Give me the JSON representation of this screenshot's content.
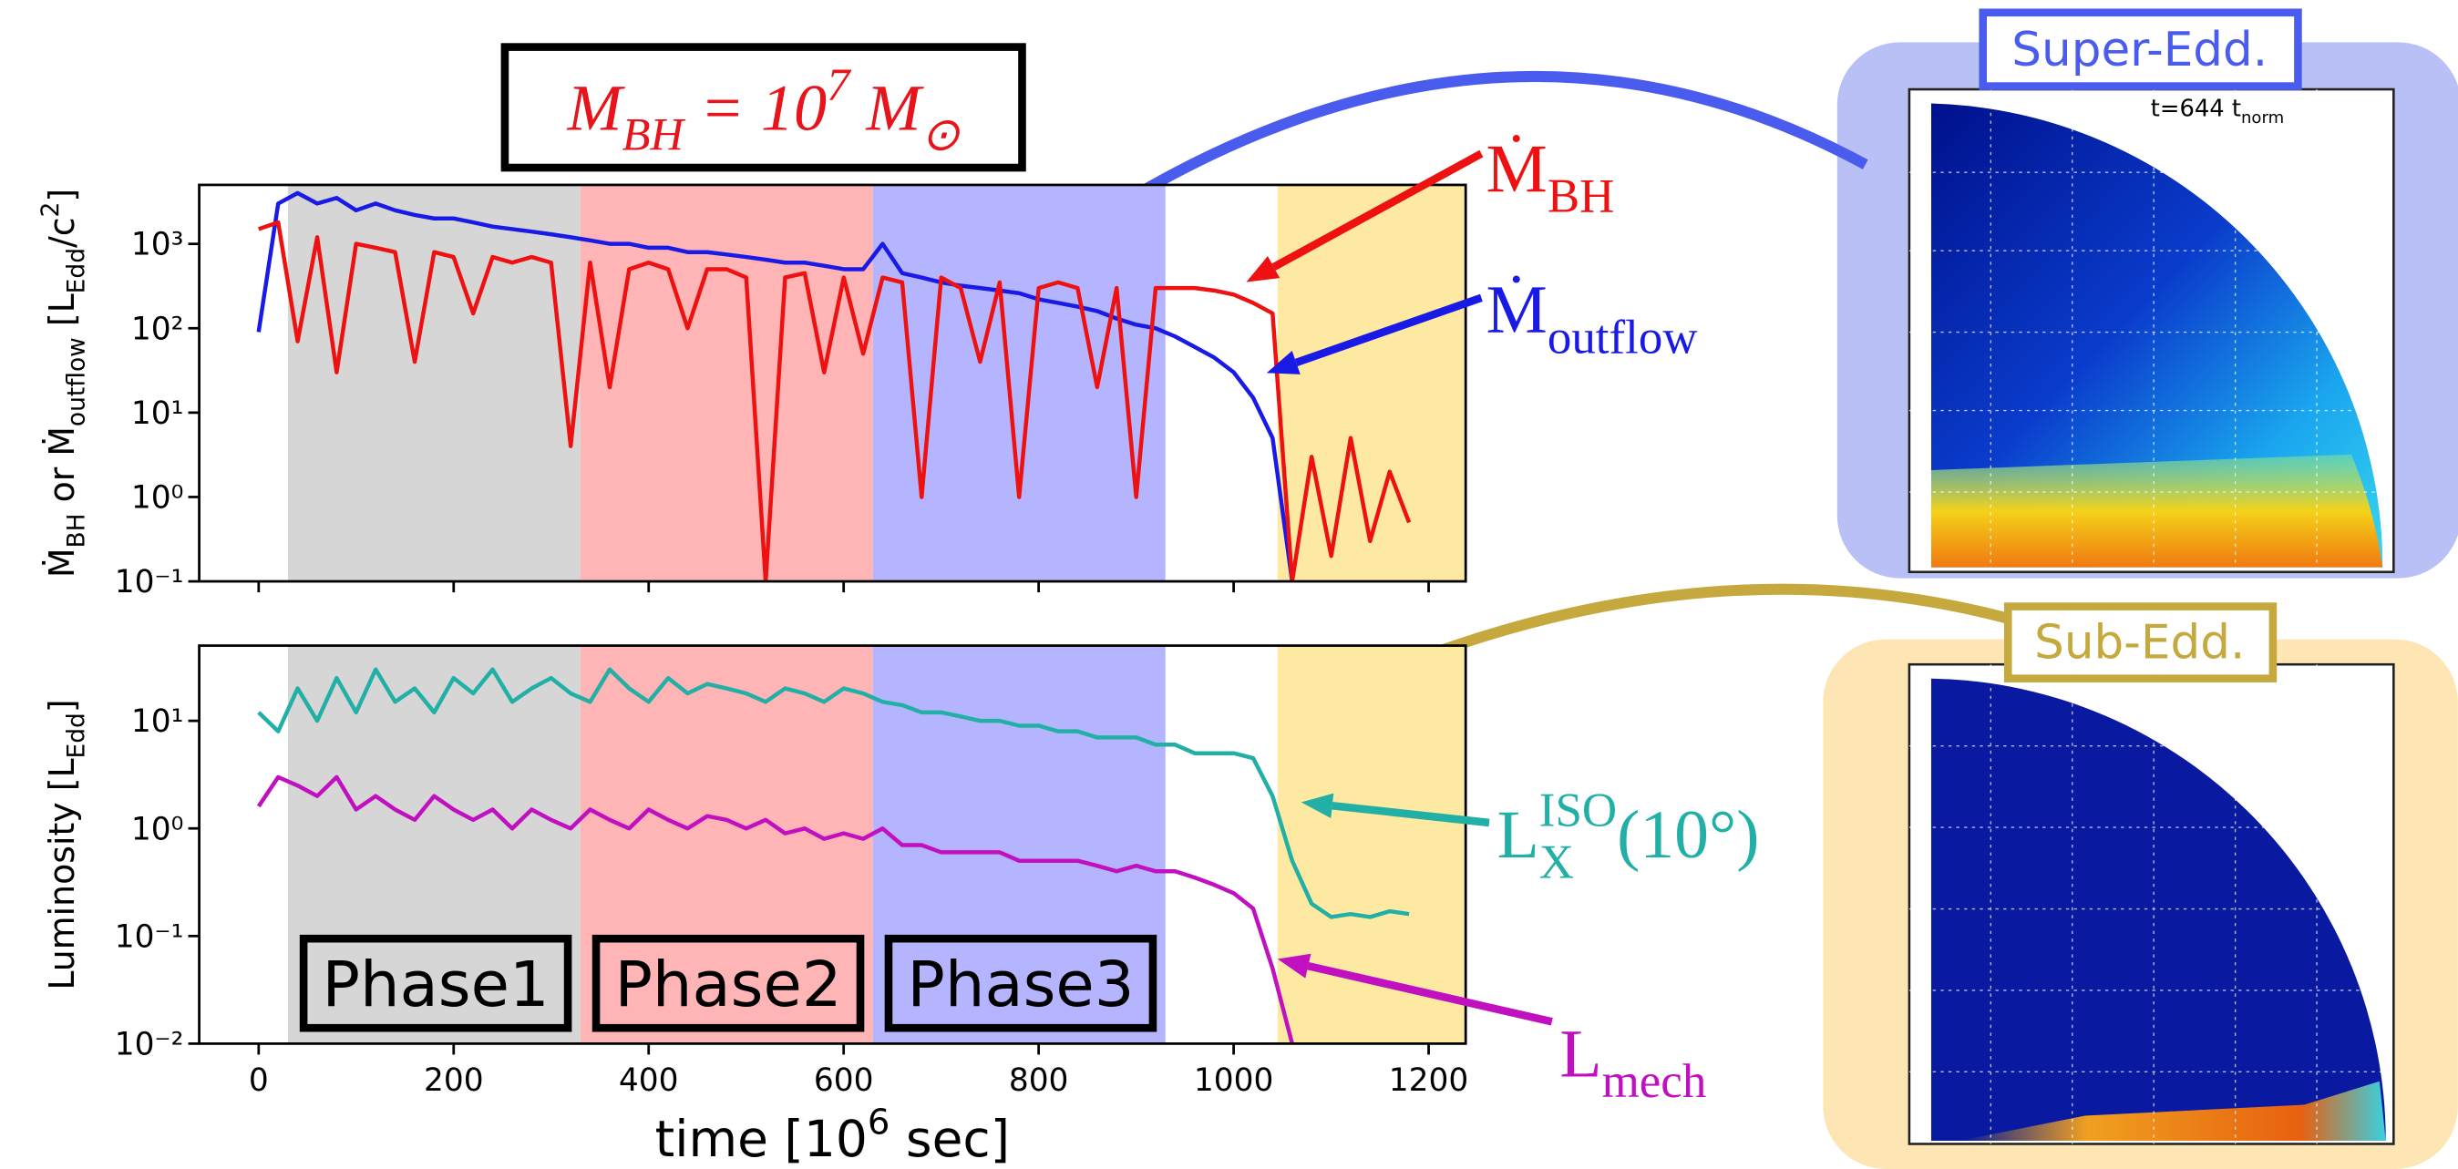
{
  "chart_data": [
    {
      "type": "line",
      "title": [
        {
          "text": "M"
        },
        {
          "text": "BH",
          "sub": true
        },
        {
          "text": " = 10"
        },
        {
          "text": "7",
          "sup": true
        },
        {
          "text": " M"
        },
        {
          "text": "⊙",
          "sub": true
        }
      ],
      "title_color": "#e8141c",
      "ylabel": [
        {
          "text": "Ṁ"
        },
        {
          "text": "BH",
          "sub": true
        },
        {
          "text": " or Ṁ"
        },
        {
          "text": "outflow",
          "sub": true
        },
        {
          "text": " [L"
        },
        {
          "text": "Edd",
          "sub": true
        },
        {
          "text": "/c"
        },
        {
          "text": "2",
          "sup": true
        },
        {
          "text": "]"
        }
      ],
      "x": [
        0,
        20,
        40,
        60,
        80,
        100,
        120,
        140,
        160,
        180,
        200,
        220,
        240,
        260,
        280,
        300,
        320,
        340,
        360,
        380,
        400,
        420,
        440,
        460,
        480,
        500,
        520,
        540,
        560,
        580,
        600,
        620,
        640,
        660,
        680,
        700,
        720,
        740,
        760,
        780,
        800,
        820,
        840,
        860,
        880,
        900,
        920,
        940,
        960,
        980,
        1000,
        1020,
        1040,
        1060,
        1080,
        1100,
        1120,
        1140,
        1160,
        1180
      ],
      "xlim": [
        -61,
        1238
      ],
      "xticks": [
        0,
        200,
        400,
        600,
        800,
        1000,
        1200
      ],
      "show_xtick_labels": false,
      "yscale": "log",
      "ylim": [
        0.1,
        5000
      ],
      "yticks": [
        {
          "value": 0.1,
          "label": "10⁻¹"
        },
        {
          "value": 1,
          "label": "10⁰"
        },
        {
          "value": 10,
          "label": "10¹"
        },
        {
          "value": 100,
          "label": "10²"
        },
        {
          "value": 1000,
          "label": "10³"
        }
      ],
      "regions": [
        {
          "start": 30,
          "end": 330,
          "color": "#d6d6d6"
        },
        {
          "start": 330,
          "end": 630,
          "color": "#ffb5b5"
        },
        {
          "start": 630,
          "end": 930,
          "color": "#b5b5ff"
        },
        {
          "start": 1045,
          "end": 1238,
          "color": "#fde9a2"
        }
      ],
      "series": [
        {
          "label": [
            {
              "text": "Ṁ"
            },
            {
              "text": "outflow",
              "sub": true
            }
          ],
          "color": "#1a1ae6",
          "values": [
            90,
            3000,
            4000,
            3000,
            3500,
            2500,
            3000,
            2500,
            2200,
            2000,
            2000,
            1800,
            1600,
            1500,
            1400,
            1300,
            1200,
            1100,
            1000,
            1000,
            900,
            900,
            800,
            800,
            750,
            700,
            650,
            600,
            600,
            550,
            500,
            500,
            1000,
            450,
            400,
            350,
            320,
            300,
            280,
            260,
            220,
            200,
            180,
            160,
            130,
            110,
            100,
            80,
            60,
            45,
            30,
            15,
            5,
            0.1,
            null,
            null,
            null,
            null,
            null,
            null
          ]
        },
        {
          "label": [
            {
              "text": "Ṁ"
            },
            {
              "text": "BH",
              "sub": true
            }
          ],
          "color": "#ee1111",
          "values": [
            1500,
            1800,
            70,
            1200,
            30,
            1000,
            900,
            800,
            40,
            800,
            700,
            150,
            700,
            600,
            700,
            600,
            4,
            600,
            20,
            500,
            600,
            500,
            100,
            500,
            500,
            400,
            0.1,
            400,
            450,
            30,
            400,
            50,
            400,
            350,
            1,
            400,
            300,
            40,
            350,
            1,
            300,
            350,
            300,
            20,
            300,
            1,
            300,
            300,
            300,
            280,
            250,
            200,
            150,
            0.1,
            3,
            0.2,
            5,
            0.3,
            2,
            0.5
          ]
        }
      ]
    },
    {
      "type": "line",
      "xlabel": [
        {
          "text": "time  [10"
        },
        {
          "text": "6",
          "sup": true
        },
        {
          "text": " sec]"
        }
      ],
      "ylabel": [
        {
          "text": "Luminosity [L"
        },
        {
          "text": "Edd",
          "sub": true
        },
        {
          "text": "]"
        }
      ],
      "x": [
        0,
        20,
        40,
        60,
        80,
        100,
        120,
        140,
        160,
        180,
        200,
        220,
        240,
        260,
        280,
        300,
        320,
        340,
        360,
        380,
        400,
        420,
        440,
        460,
        480,
        500,
        520,
        540,
        560,
        580,
        600,
        620,
        640,
        660,
        680,
        700,
        720,
        740,
        760,
        780,
        800,
        820,
        840,
        860,
        880,
        900,
        920,
        940,
        960,
        980,
        1000,
        1020,
        1040,
        1060,
        1080,
        1100,
        1120,
        1140,
        1160,
        1180
      ],
      "xlim": [
        -61,
        1238
      ],
      "xticks": [
        0,
        200,
        400,
        600,
        800,
        1000,
        1200
      ],
      "show_xtick_labels": true,
      "yscale": "log",
      "ylim": [
        0.01,
        50
      ],
      "yticks": [
        {
          "value": 0.01,
          "label": "10⁻²"
        },
        {
          "value": 0.1,
          "label": "10⁻¹"
        },
        {
          "value": 1,
          "label": "10⁰"
        },
        {
          "value": 10,
          "label": "10¹"
        }
      ],
      "regions": [
        {
          "start": 30,
          "end": 330,
          "color": "#d6d6d6",
          "label": "Phase1"
        },
        {
          "start": 330,
          "end": 630,
          "color": "#ffb5b5",
          "label": "Phase2"
        },
        {
          "start": 630,
          "end": 930,
          "color": "#b5b5ff",
          "label": "Phase3"
        },
        {
          "start": 1045,
          "end": 1238,
          "color": "#fde9a2"
        }
      ],
      "series": [
        {
          "label": [
            {
              "text": "L"
            },
            {
              "text": "X",
              "sub": true
            },
            {
              "text": "ISO",
              "sup": true
            },
            {
              "text": "(10°)"
            }
          ],
          "color": "#22b0a6",
          "values": [
            12,
            8,
            20,
            10,
            25,
            12,
            30,
            15,
            20,
            12,
            25,
            18,
            30,
            15,
            20,
            25,
            18,
            15,
            30,
            20,
            15,
            25,
            18,
            22,
            20,
            18,
            15,
            20,
            18,
            15,
            20,
            18,
            15,
            14,
            12,
            12,
            11,
            10,
            10,
            9,
            9,
            8,
            8,
            7,
            7,
            7,
            6,
            6,
            5,
            5,
            5,
            4.5,
            2,
            0.5,
            0.2,
            0.15,
            0.16,
            0.15,
            0.17,
            0.16
          ]
        },
        {
          "label": [
            {
              "text": "L"
            },
            {
              "text": "mech",
              "sub": true
            }
          ],
          "color": "#c010c0",
          "values": [
            1.6,
            3,
            2.5,
            2,
            3,
            1.5,
            2,
            1.5,
            1.2,
            2,
            1.5,
            1.2,
            1.5,
            1,
            1.5,
            1.2,
            1,
            1.5,
            1.2,
            1,
            1.5,
            1.2,
            1,
            1.3,
            1.2,
            1,
            1.2,
            0.9,
            1,
            0.8,
            0.9,
            0.8,
            1,
            0.7,
            0.7,
            0.6,
            0.6,
            0.6,
            0.6,
            0.5,
            0.5,
            0.5,
            0.5,
            0.45,
            0.4,
            0.45,
            0.4,
            0.4,
            0.35,
            0.3,
            0.25,
            0.18,
            0.05,
            0.01,
            null,
            null,
            null,
            null,
            null,
            null
          ]
        }
      ]
    }
  ],
  "snapshots": [
    {
      "label": "Super-Edd.",
      "time": [
        {
          "text": "t=644 t"
        },
        {
          "text": "norm",
          "sub": true
        }
      ]
    },
    {
      "label": "Sub-Edd."
    }
  ]
}
